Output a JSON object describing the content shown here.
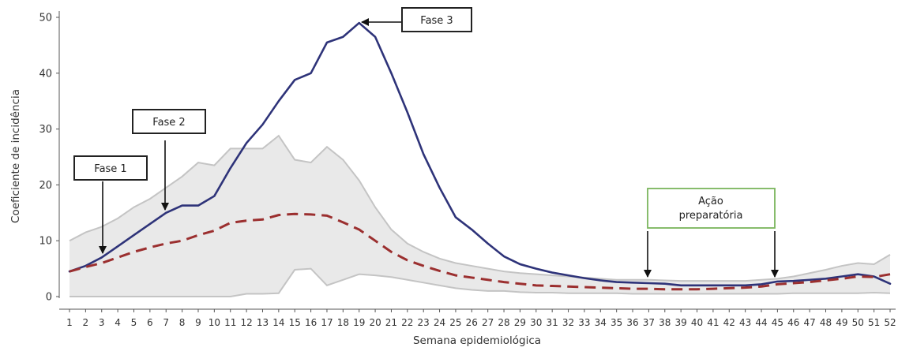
{
  "chart_data": {
    "type": "line",
    "xlabel": "Semana epidemiológica",
    "ylabel": "Coeficiente de incidência",
    "x": [
      1,
      2,
      3,
      4,
      5,
      6,
      7,
      8,
      9,
      10,
      11,
      12,
      13,
      14,
      15,
      16,
      17,
      18,
      19,
      20,
      21,
      22,
      23,
      24,
      25,
      26,
      27,
      28,
      29,
      30,
      31,
      32,
      33,
      34,
      35,
      36,
      37,
      38,
      39,
      40,
      41,
      42,
      43,
      44,
      45,
      46,
      47,
      48,
      49,
      50,
      51,
      52
    ],
    "xlim": [
      1,
      52
    ],
    "ylim": [
      0,
      50
    ],
    "yticks": [
      0,
      10,
      20,
      30,
      40,
      50
    ],
    "grid": false,
    "series": [
      {
        "style": "solid",
        "color": "#2e3379",
        "values": [
          4.5,
          5.5,
          7.0,
          9.0,
          11.0,
          13.0,
          15.0,
          16.3,
          16.3,
          18.0,
          23.0,
          27.5,
          30.8,
          35.0,
          38.8,
          40.0,
          45.5,
          46.5,
          49.0,
          46.5,
          40.0,
          33.0,
          25.5,
          19.5,
          14.2,
          12.0,
          9.5,
          7.2,
          5.8,
          5.0,
          4.3,
          3.8,
          3.3,
          2.9,
          2.6,
          2.5,
          2.4,
          2.3,
          2.0,
          2.0,
          2.0,
          2.0,
          2.0,
          2.2,
          2.7,
          2.8,
          3.0,
          3.2,
          3.6,
          4.0,
          3.6,
          2.3
        ]
      },
      {
        "style": "dashed",
        "color": "#9b2f2f",
        "values": [
          4.5,
          5.3,
          6.0,
          7.0,
          8.0,
          8.8,
          9.5,
          10.0,
          11.0,
          11.8,
          13.2,
          13.6,
          13.8,
          14.6,
          14.8,
          14.7,
          14.5,
          13.3,
          12.0,
          10.0,
          8.0,
          6.5,
          5.5,
          4.6,
          3.8,
          3.4,
          3.0,
          2.6,
          2.3,
          2.0,
          1.9,
          1.8,
          1.7,
          1.6,
          1.5,
          1.4,
          1.4,
          1.3,
          1.3,
          1.3,
          1.4,
          1.5,
          1.6,
          1.8,
          2.2,
          2.4,
          2.6,
          2.9,
          3.2,
          3.6,
          3.5,
          4.0
        ]
      }
    ],
    "band": {
      "color": "#e9e9e9",
      "line_color": "#c4c4c4",
      "upper": [
        10.0,
        11.5,
        12.5,
        14.0,
        16.0,
        17.5,
        19.5,
        21.5,
        24.0,
        23.5,
        26.5,
        26.5,
        26.5,
        28.8,
        24.5,
        24.0,
        26.8,
        24.5,
        20.8,
        16.0,
        12.0,
        9.5,
        8.0,
        6.8,
        6.0,
        5.5,
        5.0,
        4.5,
        4.2,
        4.0,
        3.8,
        3.6,
        3.4,
        3.2,
        3.0,
        3.0,
        3.0,
        2.9,
        2.8,
        2.8,
        2.8,
        2.8,
        2.8,
        3.0,
        3.2,
        3.6,
        4.2,
        4.8,
        5.5,
        6.0,
        5.8,
        7.5
      ],
      "lower": [
        0,
        0,
        0,
        0,
        0,
        0,
        0,
        0,
        0,
        0,
        0,
        0.5,
        0.5,
        0.6,
        4.8,
        5.0,
        2.0,
        3.0,
        4.0,
        3.8,
        3.5,
        3.0,
        2.5,
        2.0,
        1.5,
        1.2,
        1.0,
        1.0,
        0.8,
        0.7,
        0.7,
        0.6,
        0.6,
        0.6,
        0.6,
        0.5,
        0.5,
        0.5,
        0.5,
        0.5,
        0.5,
        0.5,
        0.5,
        0.5,
        0.5,
        0.6,
        0.6,
        0.6,
        0.6,
        0.6,
        0.7,
        0.6
      ]
    },
    "annotations": [
      {
        "text": "Fase 1",
        "target_x": 3,
        "target_y": 6.5,
        "box_color": "#222222"
      },
      {
        "text": "Fase 2",
        "target_x": 7,
        "target_y": 15.5,
        "box_color": "#222222"
      },
      {
        "text": "Fase 3",
        "target_x": 19,
        "target_y": 49,
        "box_color": "#222222"
      },
      {
        "text_lines": [
          "Ação",
          "preparatória"
        ],
        "target_xs": [
          37,
          45
        ],
        "target_y": 2.5,
        "box_color": "#7ab55c"
      }
    ]
  }
}
